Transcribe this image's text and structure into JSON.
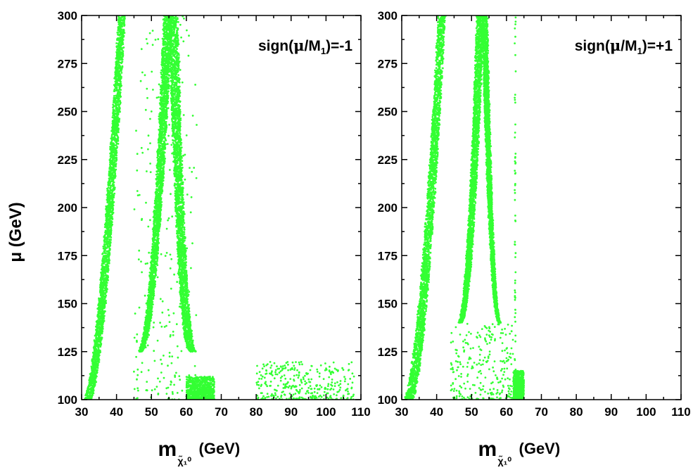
{
  "chart_data": [
    {
      "type": "scatter",
      "annotation": "sign(μ/M₁)=-1",
      "annotation_parts": {
        "pre": "sign(",
        "mu": "μ",
        "mid": "/M",
        "sub": "1",
        "post": ")=-1"
      },
      "xlabel": "m",
      "xlabel_subscript": "χ̃₁⁰",
      "xlabel_unit": "(GeV)",
      "ylabel": "μ (GeV)",
      "xlim": [
        30,
        110
      ],
      "ylim": [
        100,
        300
      ],
      "x_ticks": [
        30,
        40,
        50,
        60,
        70,
        80,
        90,
        100,
        110
      ],
      "y_ticks": [
        100,
        125,
        150,
        175,
        200,
        225,
        250,
        275,
        300
      ],
      "marker_color": "#33ff33",
      "regions": [
        {
          "kind": "branch",
          "x_lo": [
            30.5,
            40.5
          ],
          "x_hi": [
            32.5,
            42.5
          ],
          "y_range": [
            100,
            300
          ],
          "shape": 0.6
        },
        {
          "kind": "branch",
          "x_lo": [
            46.0,
            53.5
          ],
          "x_hi": [
            47.0,
            56.0
          ],
          "y_range": [
            125,
            300
          ],
          "shape": 0.5
        },
        {
          "kind": "branch",
          "x_lo": [
            61.0,
            55.0
          ],
          "x_hi": [
            63.0,
            57.5
          ],
          "y_range": [
            125,
            300
          ],
          "shape": 0.45
        },
        {
          "kind": "blob",
          "x_range": [
            45,
            63
          ],
          "y_range": [
            100,
            300
          ],
          "density": "sparse"
        },
        {
          "kind": "blob",
          "x_range": [
            60,
            68
          ],
          "y_range": [
            100,
            112
          ],
          "density": "dense"
        },
        {
          "kind": "blob",
          "x_range": [
            80,
            108
          ],
          "y_range": [
            100,
            120
          ],
          "density": "medium"
        }
      ]
    },
    {
      "type": "scatter",
      "annotation": "sign(μ/M₁)=+1",
      "annotation_parts": {
        "pre": "sign(",
        "mu": "μ",
        "mid": "/M",
        "sub": "1",
        "post": ")=+1"
      },
      "xlabel": "m",
      "xlabel_subscript": "χ̃₁⁰",
      "xlabel_unit": "(GeV)",
      "xlim": [
        30,
        110
      ],
      "ylim": [
        100,
        300
      ],
      "x_ticks": [
        30,
        40,
        50,
        60,
        70,
        80,
        90,
        100,
        110
      ],
      "y_ticks": [
        100,
        125,
        150,
        175,
        200,
        225,
        250,
        275,
        300
      ],
      "marker_color": "#33ff33",
      "regions": [
        {
          "kind": "branch",
          "x_lo": [
            30.5,
            40.5
          ],
          "x_hi": [
            33.0,
            42.5
          ],
          "y_range": [
            100,
            300
          ],
          "shape": 0.6
        },
        {
          "kind": "branch",
          "x_lo": [
            46.0,
            51.5
          ],
          "x_hi": [
            47.0,
            53.5
          ],
          "y_range": [
            140,
            300
          ],
          "shape": 0.5
        },
        {
          "kind": "branch",
          "x_lo": [
            58.0,
            53.0
          ],
          "x_hi": [
            58.5,
            54.5
          ],
          "y_range": [
            140,
            300
          ],
          "shape": 0.45
        },
        {
          "kind": "blob",
          "x_range": [
            44,
            62
          ],
          "y_range": [
            100,
            140
          ],
          "density": "sparse"
        },
        {
          "kind": "blob",
          "x_range": [
            62,
            65
          ],
          "y_range": [
            100,
            115
          ],
          "density": "dense"
        },
        {
          "kind": "line",
          "x": 62.5,
          "y_range": [
            100,
            300
          ],
          "density": "sparse"
        }
      ]
    }
  ]
}
